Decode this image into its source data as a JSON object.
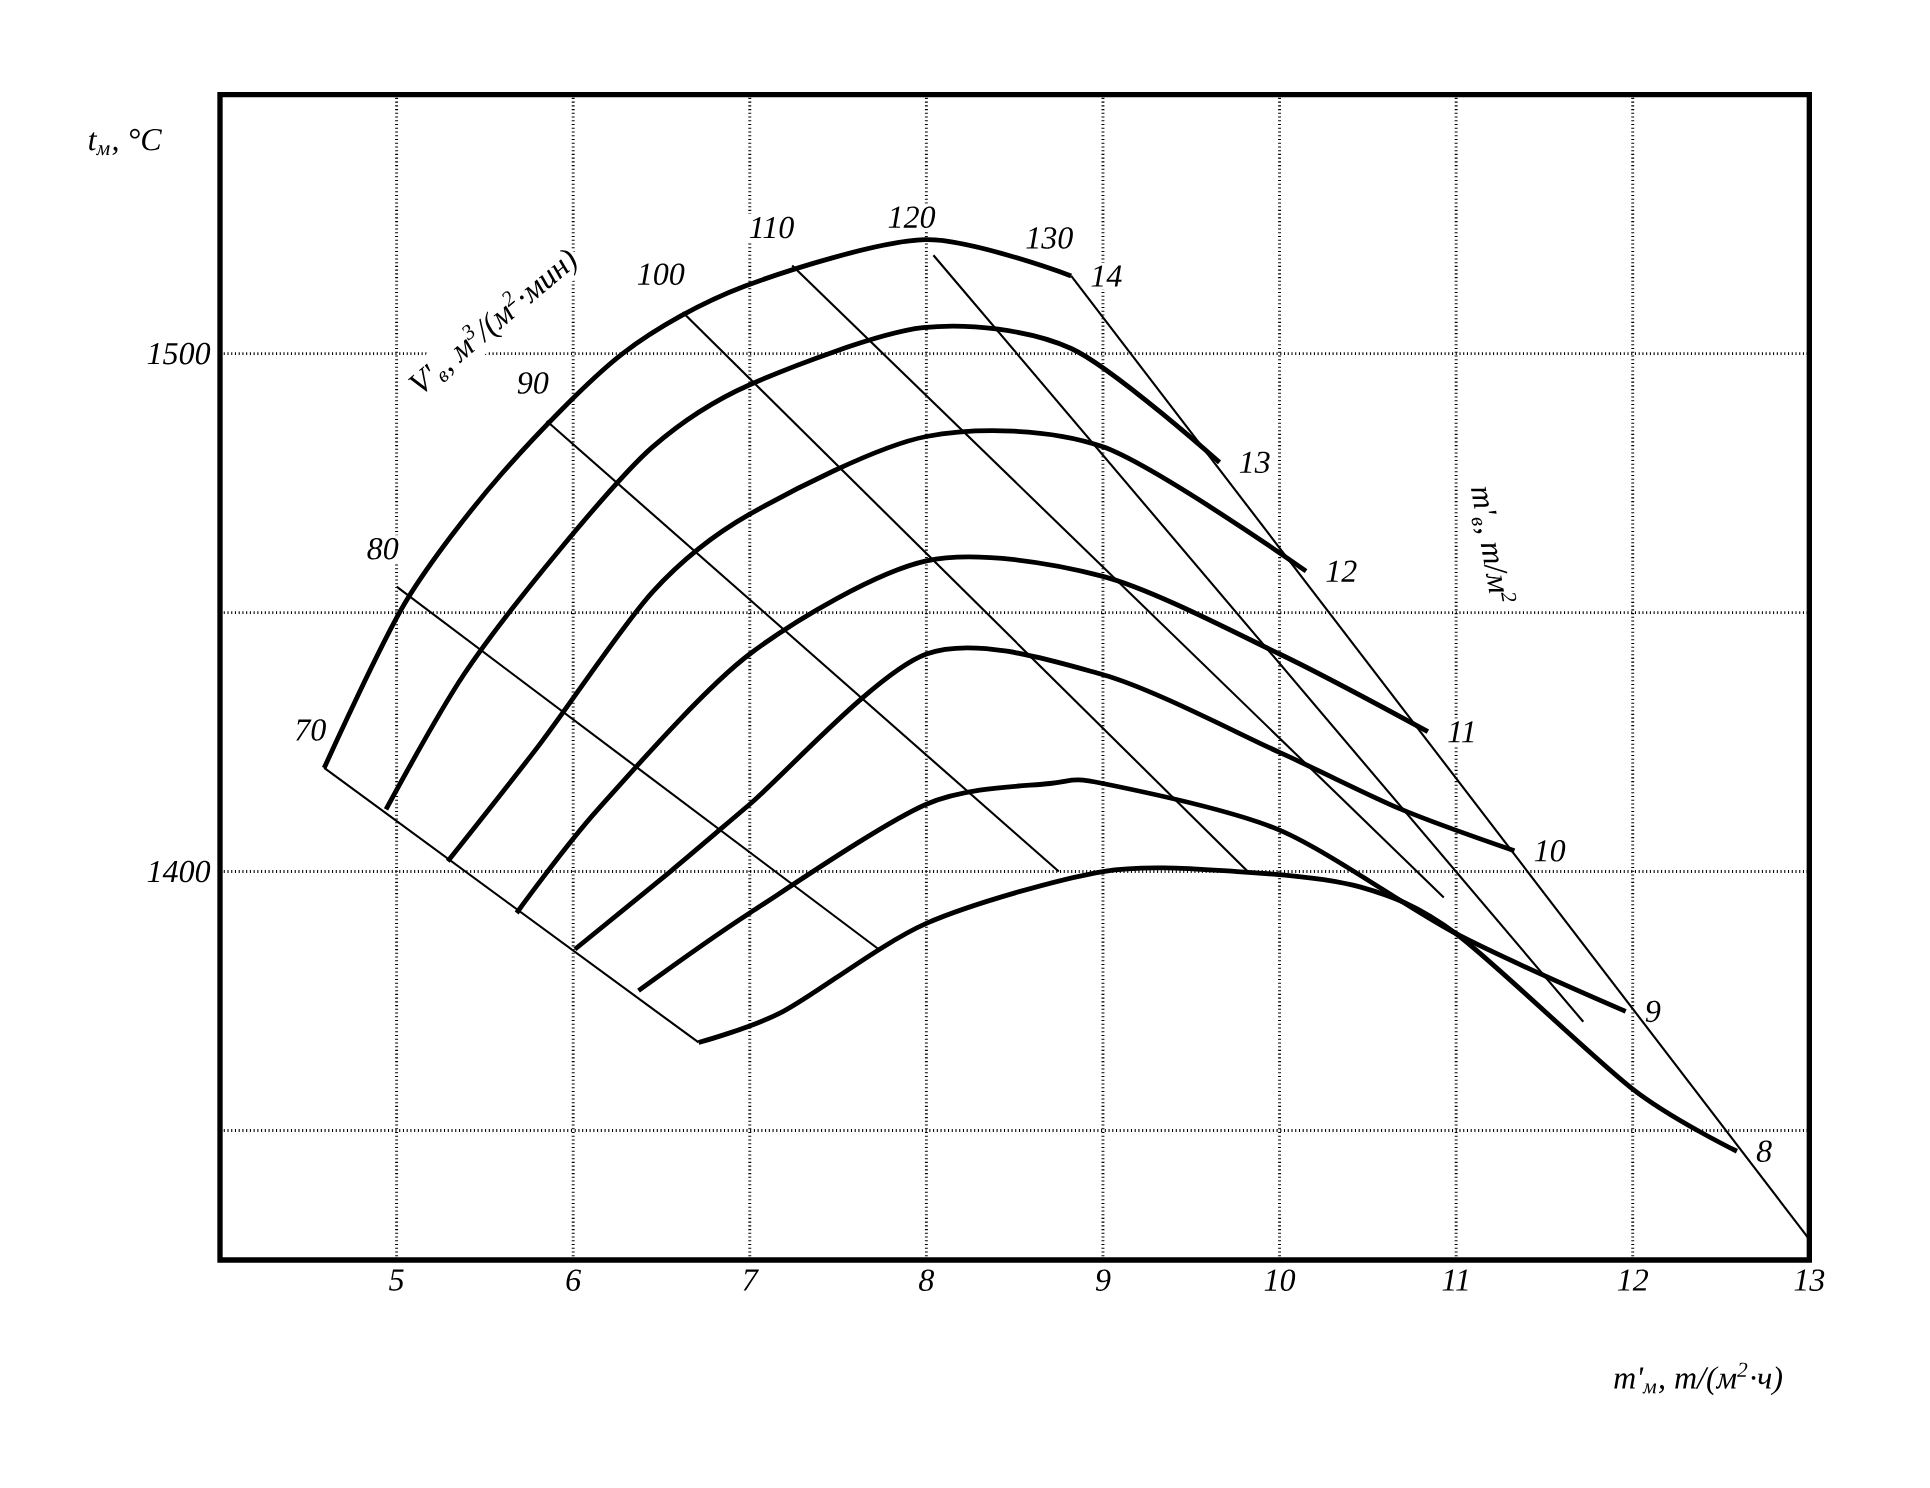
{
  "chart_data": {
    "type": "line",
    "xlabel": "m'$_{м}$, т/(м$^{2}$·ч)",
    "ylabel": "t$_{м}$, °C",
    "annotations": [
      "V'$_{в}$, м$^{3}$/(м$^{2}$·мин)",
      "m'$_{в}$, т/м$^{2}$"
    ],
    "xlim": [
      4,
      13
    ],
    "ylim": [
      1325,
      1550
    ],
    "xticks": [
      5,
      6,
      7,
      8,
      9,
      10,
      11,
      12,
      13
    ],
    "yticks": [
      {
        "value": 1350,
        "label": null
      },
      1400,
      {
        "value": 1450,
        "label": null
      },
      1500
    ],
    "grid": true,
    "series": [
      {
        "name": "14",
        "color": "#000000",
        "x": [
          4.59,
          5.05,
          5.6,
          6.28,
          6.97,
          7.99,
          8.82
        ],
        "values": [
          1420,
          1452,
          1477,
          1500,
          1513,
          1522,
          1515
        ]
      },
      {
        "name": "13",
        "color": "#000000",
        "x": [
          4.94,
          5.38,
          5.92,
          6.45,
          7.0,
          7.98,
          8.82,
          9.66
        ],
        "values": [
          1412,
          1438,
          1462,
          1482,
          1494,
          1505,
          1501,
          1479
        ]
      },
      {
        "name": "12",
        "color": "#000000",
        "x": [
          5.29,
          5.82,
          6.45,
          7.0,
          8.0,
          9.0,
          10.15
        ],
        "values": [
          1402,
          1425,
          1454,
          1469,
          1484,
          1482,
          1458
        ]
      },
      {
        "name": "11",
        "color": "#000000",
        "x": [
          5.68,
          6.14,
          7.0,
          8.0,
          9.0,
          10.0,
          10.84
        ],
        "values": [
          1392,
          1412,
          1442,
          1460,
          1457,
          1442,
          1427
        ]
      },
      {
        "name": "10",
        "color": "#000000",
        "x": [
          6.01,
          6.55,
          7.0,
          8.0,
          9.0,
          10.0,
          10.69,
          11.33
        ],
        "values": [
          1385,
          1400,
          1413,
          1442,
          1438,
          1423,
          1412,
          1404
        ]
      },
      {
        "name": "9",
        "color": "#000000",
        "x": [
          6.37,
          7.0,
          8.0,
          8.7,
          9.0,
          10.0,
          11.0,
          11.96
        ],
        "values": [
          1377,
          1392,
          1413,
          1417,
          1417,
          1408,
          1388,
          1373
        ]
      },
      {
        "name": "8",
        "color": "#000000",
        "x": [
          6.71,
          7.19,
          8.0,
          9.0,
          9.76,
          10.46,
          11.0,
          12.0,
          12.59
        ],
        "values": [
          1367,
          1373,
          1390,
          1400,
          1400,
          1397,
          1388,
          1358,
          1346
        ]
      },
      {
        "name": "70",
        "color": "#000000",
        "x": [
          4.59,
          6.71
        ],
        "values": [
          1420,
          1367
        ]
      },
      {
        "name": "80",
        "color": "#000000",
        "x": [
          5.0,
          7.73
        ],
        "values": [
          1455,
          1385
        ]
      },
      {
        "name": "90",
        "color": "#000000",
        "x": [
          5.85,
          8.75
        ],
        "values": [
          1487,
          1400
        ]
      },
      {
        "name": "100",
        "color": "#000000",
        "x": [
          6.62,
          9.82
        ],
        "values": [
          1508,
          1400
        ]
      },
      {
        "name": "110",
        "color": "#000000",
        "x": [
          7.24,
          10.93
        ],
        "values": [
          1517,
          1395
        ]
      },
      {
        "name": "120",
        "color": "#000000",
        "x": [
          8.04,
          11.72
        ],
        "values": [
          1519,
          1371
        ]
      },
      {
        "name": "130",
        "color": "#000000",
        "x": [
          8.82,
          13.0
        ],
        "values": [
          1515,
          1329
        ]
      }
    ]
  }
}
